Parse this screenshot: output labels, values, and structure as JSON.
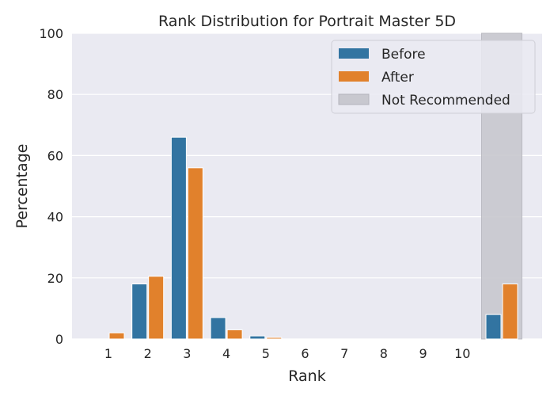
{
  "chart_data": {
    "type": "bar",
    "title": "Rank Distribution for Portrait Master 5D",
    "xlabel": "Rank",
    "ylabel": "Percentage",
    "ylim": [
      0,
      100
    ],
    "yticks": [
      0,
      20,
      40,
      60,
      80,
      100
    ],
    "categories": [
      "1",
      "2",
      "3",
      "4",
      "5",
      "6",
      "7",
      "8",
      "9",
      "10",
      ""
    ],
    "series": [
      {
        "name": "Before",
        "color": "#3274a1",
        "values": [
          0,
          18,
          66,
          7,
          1,
          0,
          0,
          0,
          0,
          0,
          8
        ]
      },
      {
        "name": "After",
        "color": "#e1812c",
        "values": [
          2,
          20.5,
          56,
          3,
          0.5,
          0,
          0,
          0,
          0,
          0,
          18
        ]
      }
    ],
    "shaded_region": {
      "label": "Not Recommended",
      "category_index": 10,
      "color": "#c8c8cf"
    },
    "grid": true,
    "legend_position": "top-right",
    "background": "#eaeaf2"
  }
}
